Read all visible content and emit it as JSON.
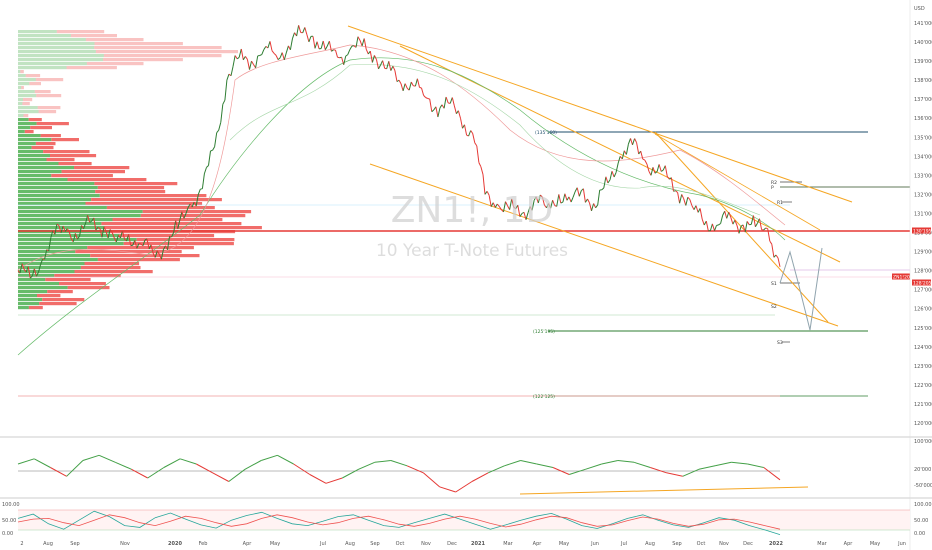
{
  "chart_data": {
    "type": "line",
    "title": "ZN1!, 1D",
    "subtitle": "10 Year T-Note Futures",
    "currency_label": "USD",
    "y_ticks": [
      "141'000",
      "140'000",
      "139'000",
      "138'000",
      "137'000",
      "136'000",
      "135'000",
      "134'000",
      "133'000",
      "132'000",
      "131'000",
      "130'000",
      "129'000",
      "128'000",
      "127'000",
      "126'000",
      "125'000",
      "124'000",
      "123'000",
      "122'000",
      "121'000",
      "120'000"
    ],
    "x_ticks": [
      "2",
      "Aug",
      "Sep",
      "Nov",
      "2020",
      "Feb",
      "Apr",
      "May",
      "Jul",
      "Aug",
      "Sep",
      "Oct",
      "Nov",
      "Dec",
      "2021",
      "Mar",
      "Apr",
      "May",
      "Jun",
      "Jul",
      "Aug",
      "Sep",
      "Oct",
      "Nov",
      "Dec",
      "2022",
      "Mar",
      "Apr",
      "May",
      "Jun"
    ],
    "price_badges": [
      {
        "text": "130'195",
        "color": "#e53935"
      },
      {
        "text": "ZN1!2022",
        "color": "#e53935"
      },
      {
        "text": "128'205",
        "color": "#e53935"
      }
    ],
    "level_labels": [
      {
        "text": "(135'160)",
        "color": "#1e4d6b"
      },
      {
        "text": "(125'195)",
        "color": "#2e7d32"
      },
      {
        "text": "(122'125)",
        "color": "#2e7d32"
      }
    ],
    "pivot_labels": [
      "R2",
      "P",
      "R1",
      "S1",
      "S2",
      "S3"
    ],
    "series": [
      {
        "color": "#26a69a",
        "values": [
          128.0,
          127.6,
          128.6,
          129.9,
          130.2,
          129.8,
          130.6,
          130.3,
          129.5,
          129.9,
          129.4,
          128.9,
          129.3,
          130.2,
          131.5,
          132.3,
          134.5,
          138.0,
          139.2,
          139.0,
          139.6,
          139.3,
          139.8,
          140.5,
          140.3,
          139.6,
          139.2,
          139.6,
          139.8,
          139.3,
          138.6,
          138.0,
          137.9,
          137.2,
          136.6,
          136.8,
          136.0,
          135.2,
          132.0,
          131.5,
          131.2,
          131.0,
          131.7,
          131.3,
          132.0,
          131.6,
          132.3,
          131.3,
          132.6,
          134.0,
          134.6,
          133.8,
          133.2,
          132.8,
          132.0,
          131.2,
          130.6,
          130.4,
          130.8,
          130.4,
          130.3,
          130.2,
          128.2
        ]
      }
    ],
    "pdh_values": [
      126.5
    ],
    "oscillator1_ticks": [
      "100'000",
      "20'000",
      "-50'000"
    ],
    "oscillator2_ticks": [
      "100.00",
      "50.00",
      "0.00"
    ],
    "oscillator2_series": [
      {
        "color": "#26a69a",
        "values": [
          60,
          72,
          45,
          30,
          55,
          80,
          65,
          40,
          35,
          62,
          75,
          58,
          42,
          33,
          55,
          68,
          77,
          60,
          45,
          40,
          52,
          65,
          70,
          55,
          40,
          35,
          48,
          60,
          72,
          58,
          44,
          30,
          42,
          55,
          66,
          74,
          58,
          40,
          32,
          45,
          60,
          70,
          55,
          42,
          35,
          48,
          62,
          55,
          40,
          28,
          15
        ]
      },
      {
        "color": "#ef5350",
        "values": [
          50,
          58,
          60,
          48,
          40,
          55,
          70,
          62,
          48,
          40,
          52,
          66,
          60,
          48,
          38,
          45,
          60,
          70,
          62,
          50,
          42,
          48,
          60,
          66,
          56,
          44,
          38,
          46,
          58,
          66,
          58,
          46,
          36,
          44,
          56,
          66,
          62,
          48,
          38,
          42,
          54,
          64,
          58,
          46,
          38,
          44,
          56,
          58,
          50,
          40,
          30
        ]
      }
    ],
    "oscillator1_series": [
      {
        "color": "#26a69a",
        "values": [
          20,
          35,
          10,
          -15,
          30,
          45,
          25,
          5,
          -20,
          10,
          35,
          20,
          -5,
          -30,
          5,
          30,
          45,
          20,
          -10,
          -35,
          -20,
          5,
          25,
          30,
          15,
          -5,
          -45,
          -60,
          -30,
          -5,
          15,
          30,
          20,
          10,
          -10,
          5,
          20,
          30,
          25,
          10,
          -5,
          -15,
          5,
          15,
          25,
          20,
          10,
          -25
        ]
      }
    ],
    "ylim": [
      120,
      141
    ]
  }
}
